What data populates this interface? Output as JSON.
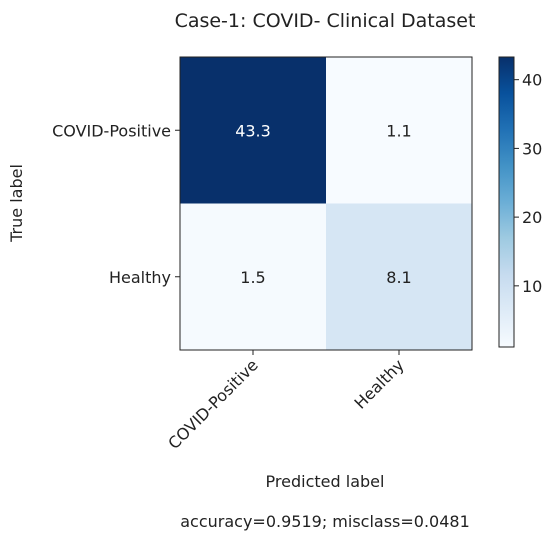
{
  "chart_data": {
    "type": "heatmap",
    "title": "Case-1: COVID- Clinical Dataset",
    "xlabel": "Predicted label",
    "ylabel": "True label",
    "x_categories": [
      "COVID-Positive",
      "Healthy"
    ],
    "y_categories": [
      "COVID-Positive",
      "Healthy"
    ],
    "values": [
      [
        43.3,
        1.1
      ],
      [
        1.5,
        8.1
      ]
    ],
    "colormap": "Blues",
    "colorbar": {
      "min": 1.1,
      "max": 43.3,
      "ticks": [
        10,
        20,
        30,
        40
      ]
    },
    "footer": "accuracy=0.9519; misclass=0.0481"
  }
}
